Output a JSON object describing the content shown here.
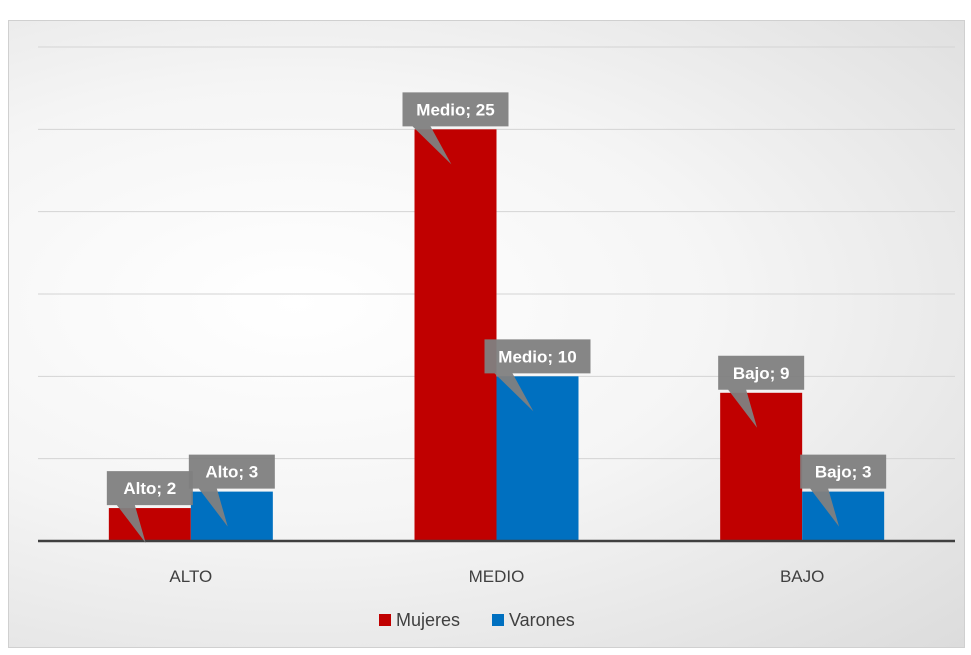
{
  "chart_data": {
    "type": "bar",
    "categories": [
      "ALTO",
      "MEDIO",
      "BAJO"
    ],
    "series": [
      {
        "name": "Mujeres",
        "color": "#c00000",
        "values": [
          2,
          25,
          9
        ],
        "labels": [
          "Alto; 2",
          "Medio; 25",
          "Bajo; 9"
        ]
      },
      {
        "name": "Varones",
        "color": "#0070c0",
        "values": [
          3,
          10,
          3
        ],
        "labels": [
          "Alto; 3",
          "Medio; 10",
          "Bajo; 3"
        ]
      }
    ],
    "ylim": [
      0,
      30
    ],
    "grid": true,
    "legend_position": "bottom",
    "label_box_color": "#7f7f7f"
  }
}
